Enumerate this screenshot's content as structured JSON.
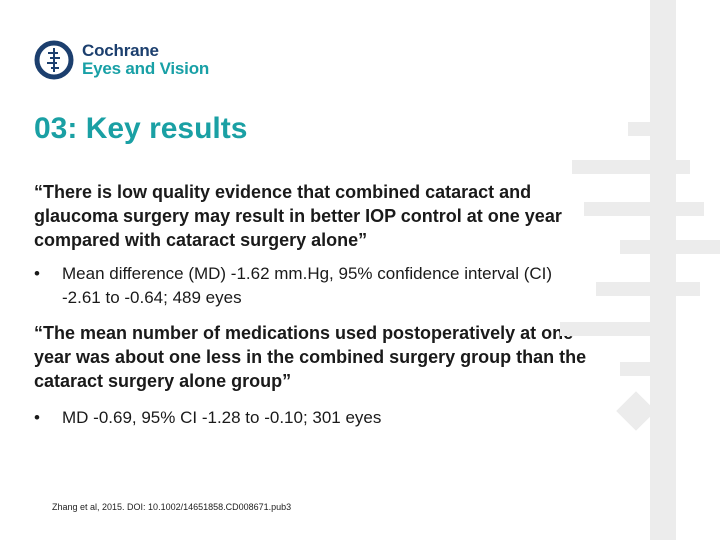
{
  "logo": {
    "line1": "Cochrane",
    "line2": "Eyes and Vision",
    "icon": "cochrane-logo-icon"
  },
  "slide": {
    "title": "03: Key results",
    "quote1": "“There is low quality evidence that combined cataract and glaucoma surgery may result in better IOP control at one year compared with cataract surgery alone”",
    "bullet1": "Mean difference (MD) -1.62 mm.Hg, 95% confidence interval (CI) -2.61 to -0.64; 489 eyes",
    "quote2": "“The mean number of medications used postoperatively at one year was about one less in the combined surgery group than the cataract surgery alone group”",
    "bullet2": "MD -0.69, 95% CI -1.28 to -0.10; 301 eyes",
    "bullet_marker": "•",
    "citation": "Zhang et al, 2015. DOI: 10.1002/14651858.CD008671.pub3"
  },
  "colors": {
    "title": "#1aa0a4",
    "brand_navy": "#1c3f6e",
    "brand_teal": "#18a0a6",
    "decoration_gray": "#ececec"
  }
}
